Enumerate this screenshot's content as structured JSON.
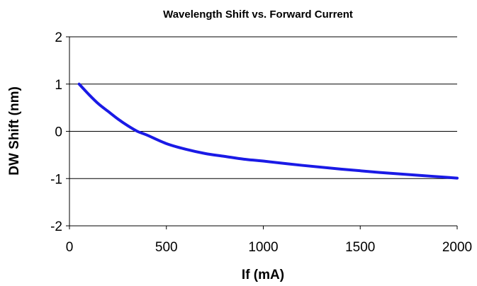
{
  "chart_data": {
    "type": "line",
    "title": "Wavelength Shift vs. Forward Current",
    "xlabel": "If (mA)",
    "ylabel": "DW Shift (nm)",
    "xlim": [
      0,
      2000
    ],
    "ylim": [
      -2,
      2
    ],
    "x_ticks": [
      "0",
      "500",
      "1000",
      "1500",
      "2000"
    ],
    "y_ticks": [
      "2",
      "1",
      "0",
      "-1",
      "-2"
    ],
    "grid": "horizontal",
    "legend": "none",
    "series": [
      {
        "color": "#1a1ae6",
        "x": [
          50,
          100,
          150,
          200,
          250,
          300,
          350,
          400,
          500,
          600,
          700,
          800,
          900,
          1000,
          1200,
          1400,
          1600,
          1800,
          2000
        ],
        "y": [
          1.0,
          0.78,
          0.58,
          0.42,
          0.26,
          0.12,
          0.0,
          -0.08,
          -0.26,
          -0.38,
          -0.47,
          -0.53,
          -0.59,
          -0.63,
          -0.72,
          -0.8,
          -0.87,
          -0.93,
          -0.99
        ]
      }
    ]
  }
}
